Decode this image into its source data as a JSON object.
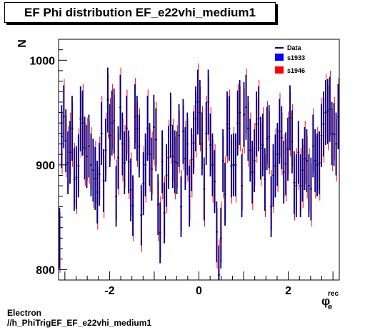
{
  "title": "EF Phi distribution EF_e22vhi_medium1",
  "footer": {
    "line1": "Electron",
    "line2": "//h_PhiTrigEF_EF_e22vhi_medium1"
  },
  "chart_data": {
    "type": "scatter",
    "title": "EF Phi distribution EF_e22vhi_medium1",
    "xlabel": "φ",
    "xlabel_sub": "e",
    "xlabel_sup": "rec",
    "ylabel": "N",
    "xlim": [
      -3.1416,
      3.1416
    ],
    "ylim": [
      790,
      1020
    ],
    "xticks": [
      -2,
      0,
      2
    ],
    "xtick_labels": [
      "-2",
      "0",
      "2"
    ],
    "yticks": [
      800,
      900,
      1000
    ],
    "ytick_labels": [
      "800",
      "900",
      "1000"
    ],
    "legend": {
      "position": "top-right",
      "entries": [
        {
          "label": "Data",
          "color": "#00007f",
          "style": "line"
        },
        {
          "label": "s1933",
          "color": "#0000ff",
          "style": "box"
        },
        {
          "label": "s1946",
          "color": "#ff0000",
          "style": "box"
        }
      ]
    },
    "series": [
      {
        "name": "Data",
        "color": "#00007f",
        "values": [
          830,
          927,
          946,
          923,
          902,
          912,
          935,
          886,
          888,
          899,
          944,
          940,
          916,
          908,
          918,
          900,
          895,
          887,
          874,
          891,
          930,
          885,
          914,
          962,
          928,
          940,
          942,
          870,
          907,
          955,
          920,
          902,
          935,
          903,
          876,
          861,
          946,
          935,
          918,
          852,
          882,
          900,
          935,
          910,
          896,
          936,
          924,
          862,
          835,
          903,
          854,
          890,
          907,
          938,
          908,
          903,
          902,
          928,
          860,
          932,
          906,
          920,
          870,
          905,
          921,
          944,
          960,
          950,
          920,
          877,
          930,
          960,
          919,
          900,
          884,
          836,
          795,
          830,
          904,
          872,
          939,
          935,
          899,
          900,
          900,
          940,
          950,
          880,
          948,
          955,
          935,
          914,
          893,
          904,
          939,
          944,
          916,
          919,
          886,
          925,
          927,
          860,
          890,
          899,
          910,
          932,
          926,
          893,
          901,
          915,
          945,
          922,
          883,
          880,
          912,
          880,
          895,
          906,
          904,
          880,
          877,
          918,
          904,
          900,
          902,
          928,
          939,
          950,
          951,
          953,
          930,
          929,
          920,
          946
        ],
        "errors": [
          29,
          30,
          30,
          30,
          30,
          30,
          31,
          30,
          30,
          30,
          31,
          31,
          30,
          30,
          30,
          30,
          30,
          30,
          30,
          30,
          30,
          30,
          30,
          31,
          30,
          31,
          31,
          29,
          30,
          31,
          30,
          30,
          31,
          30,
          30,
          29,
          31,
          31,
          30,
          29,
          30,
          30,
          31,
          30,
          30,
          31,
          30,
          29,
          29,
          30,
          29,
          30,
          30,
          31,
          30,
          30,
          30,
          30,
          29,
          31,
          30,
          30,
          29,
          30,
          30,
          31,
          31,
          31,
          30,
          30,
          30,
          31,
          30,
          30,
          30,
          29,
          28,
          29,
          30,
          30,
          31,
          31,
          30,
          30,
          30,
          31,
          31,
          30,
          31,
          31,
          31,
          30,
          30,
          30,
          31,
          31,
          30,
          30,
          30,
          30,
          30,
          29,
          30,
          30,
          30,
          31,
          30,
          30,
          30,
          30,
          31,
          30,
          30,
          30,
          30,
          30,
          30,
          30,
          30,
          30,
          30,
          30,
          30,
          30,
          30,
          30,
          31,
          31,
          31,
          31,
          30,
          30,
          30,
          31
        ]
      },
      {
        "name": "s1933",
        "color": "#0000ff",
        "values": [
          830,
          927,
          946,
          923,
          902,
          912,
          935,
          886,
          888,
          899,
          944,
          940,
          916,
          908,
          918,
          900,
          895,
          887,
          874,
          891,
          930,
          885,
          914,
          962,
          928,
          940,
          942,
          870,
          907,
          955,
          920,
          902,
          935,
          903,
          876,
          861,
          946,
          935,
          918,
          852,
          882,
          900,
          935,
          910,
          896,
          936,
          924,
          862,
          835,
          903,
          854,
          890,
          907,
          938,
          908,
          903,
          902,
          928,
          860,
          932,
          906,
          920,
          870,
          905,
          921,
          944,
          960,
          950,
          920,
          877,
          930,
          960,
          919,
          900,
          884,
          836,
          795,
          830,
          904,
          872,
          939,
          935,
          899,
          900,
          900,
          940,
          950,
          880,
          948,
          955,
          935,
          914,
          893,
          904,
          939,
          944,
          916,
          919,
          886,
          925,
          927,
          860,
          890,
          899,
          910,
          932,
          926,
          893,
          901,
          915,
          945,
          922,
          883,
          880,
          912,
          880,
          895,
          906,
          904,
          880,
          877,
          918,
          904,
          900,
          902,
          928,
          939,
          950,
          951,
          953,
          930,
          929,
          920,
          946
        ]
      },
      {
        "name": "s1946",
        "color": "#ff0000",
        "values": [
          826,
          921,
          952,
          918,
          907,
          920,
          929,
          891,
          883,
          905,
          938,
          946,
          910,
          915,
          912,
          906,
          889,
          893,
          868,
          897,
          936,
          879,
          920,
          956,
          934,
          946,
          936,
          876,
          901,
          962,
          914,
          908,
          941,
          897,
          882,
          856,
          952,
          929,
          924,
          846,
          888,
          894,
          941,
          904,
          902,
          930,
          930,
          856,
          841,
          897,
          860,
          884,
          913,
          932,
          914,
          897,
          908,
          922,
          866,
          926,
          912,
          914,
          876,
          899,
          927,
          938,
          966,
          944,
          926,
          871,
          936,
          954,
          925,
          894,
          890,
          830,
          801,
          836,
          898,
          878,
          933,
          941,
          893,
          906,
          894,
          946,
          944,
          886,
          942,
          961,
          929,
          920,
          887,
          910,
          933,
          950,
          910,
          925,
          880,
          931,
          921,
          866,
          884,
          905,
          904,
          938,
          920,
          899,
          895,
          921,
          939,
          928,
          877,
          886,
          906,
          886,
          889,
          912,
          898,
          886,
          871,
          924,
          898,
          906,
          896,
          934,
          933,
          956,
          945,
          959,
          924,
          935,
          914,
          952
        ]
      }
    ]
  }
}
